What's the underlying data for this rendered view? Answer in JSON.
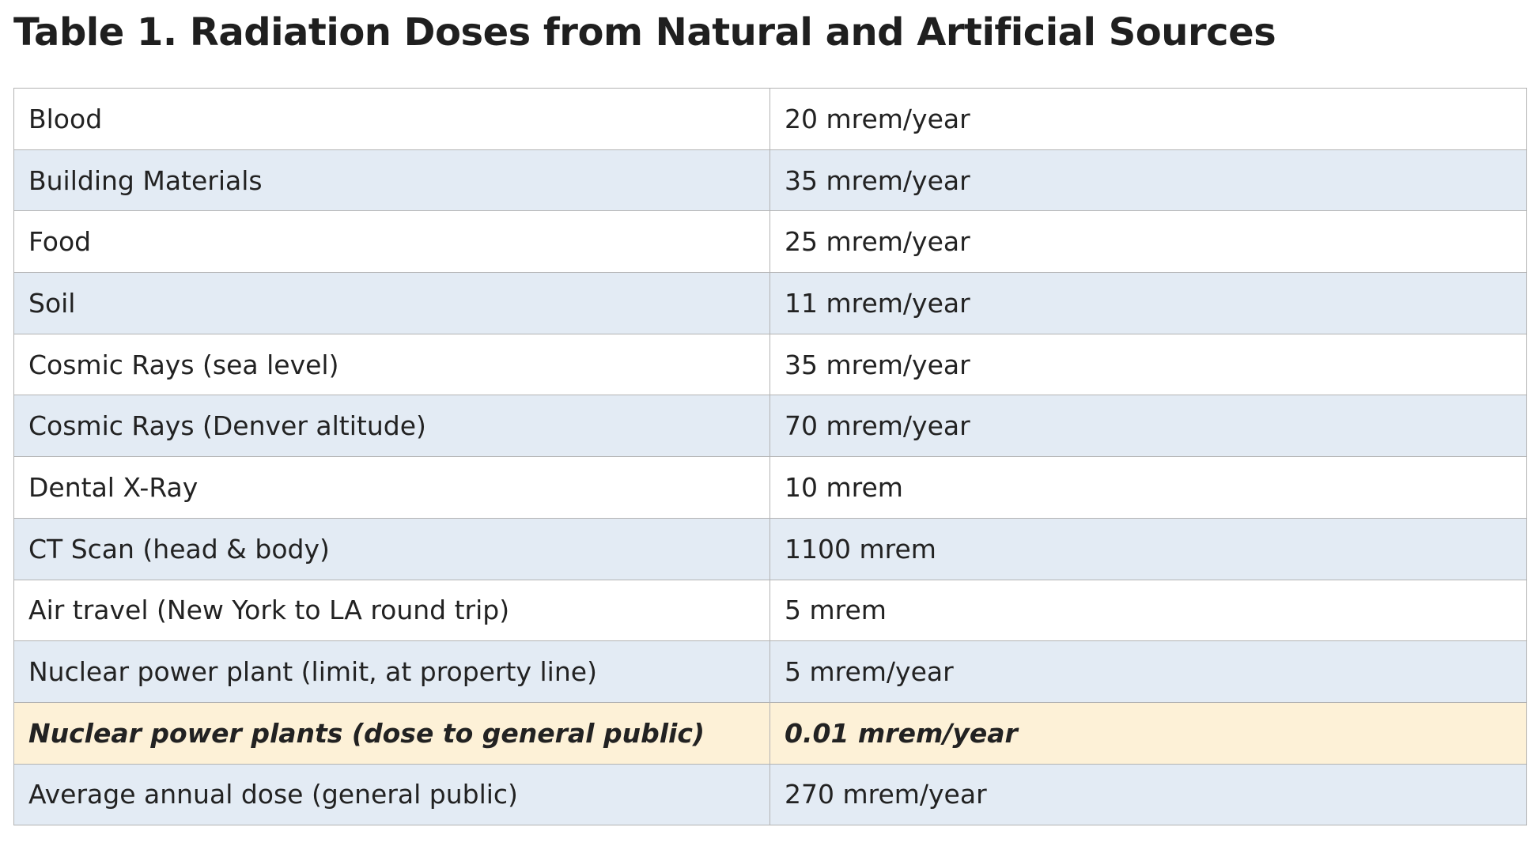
{
  "title": "Table 1. Radiation Doses from Natural and Artificial Sources",
  "table": {
    "rows": [
      [
        "Blood",
        "20 mrem/year"
      ],
      [
        "Building Materials",
        "35 mrem/year"
      ],
      [
        "Food",
        "25 mrem/year"
      ],
      [
        "Soil",
        "11 mrem/year"
      ],
      [
        "Cosmic Rays (sea level)",
        "35 mrem/year"
      ],
      [
        "Cosmic Rays (Denver altitude)",
        "70 mrem/year"
      ],
      [
        "Dental X-Ray",
        "10 mrem"
      ],
      [
        "CT Scan (head & body)",
        "1100 mrem"
      ],
      [
        "Air travel (New York to LA round trip)",
        "5 mrem"
      ],
      [
        "Nuclear power plant (limit, at property line)",
        "5 mrem/year"
      ],
      [
        "Nuclear power plants (dose to general public)",
        "0.01 mrem/year"
      ],
      [
        "Average annual dose (general public)",
        "270 mrem/year"
      ]
    ]
  }
}
